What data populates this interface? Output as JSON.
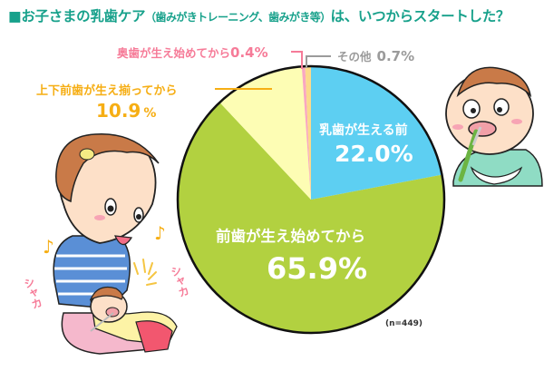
{
  "title": {
    "main_prefix": "■お子さまの乳歯ケア",
    "sub": "（歯みがきトレーニング、歯みがき等）",
    "main_suffix": "は、いつからスタートした？",
    "color": "#17a18b"
  },
  "sample": "(n=449)",
  "slices": [
    {
      "label": "乳歯が生える前",
      "value_text": "22.0%",
      "color": "#5dcff2"
    },
    {
      "label": "前歯が生え始めてから",
      "value_text": "65.9%",
      "color": "#b2d140"
    },
    {
      "label": "上下前歯が生え揃ってから",
      "value_text": "10.9",
      "unit": "%",
      "color": "#fdfdb4",
      "label_color": "#f6ae14"
    },
    {
      "label": "奥歯が生え始めてから",
      "value_text": "0.4%",
      "color": "#f9a7c1",
      "label_color": "#f67b98"
    },
    {
      "label": "その他",
      "value_text": "0.7%",
      "color": "#fcd98a",
      "label_color": "#9b9b9b"
    }
  ],
  "decorations": {
    "sfx_left": "シャカ",
    "sfx_right": "シャカ",
    "music_note": "♪"
  },
  "chart_data": {
    "type": "pie",
    "title": "お子さまの乳歯ケア（歯みがきトレーニング、歯みがき等）は、いつからスタートした？",
    "categories": [
      "乳歯が生える前",
      "前歯が生え始めてから",
      "上下前歯が生え揃ってから",
      "奥歯が生え始めてから",
      "その他"
    ],
    "values": [
      22.0,
      65.9,
      10.9,
      0.4,
      0.7
    ],
    "unit": "%",
    "n": 449,
    "start_angle": "12 o'clock",
    "direction": "clockwise",
    "colors": [
      "#5dcff2",
      "#b2d140",
      "#fdfdb4",
      "#f9a7c1",
      "#fcd98a"
    ]
  }
}
